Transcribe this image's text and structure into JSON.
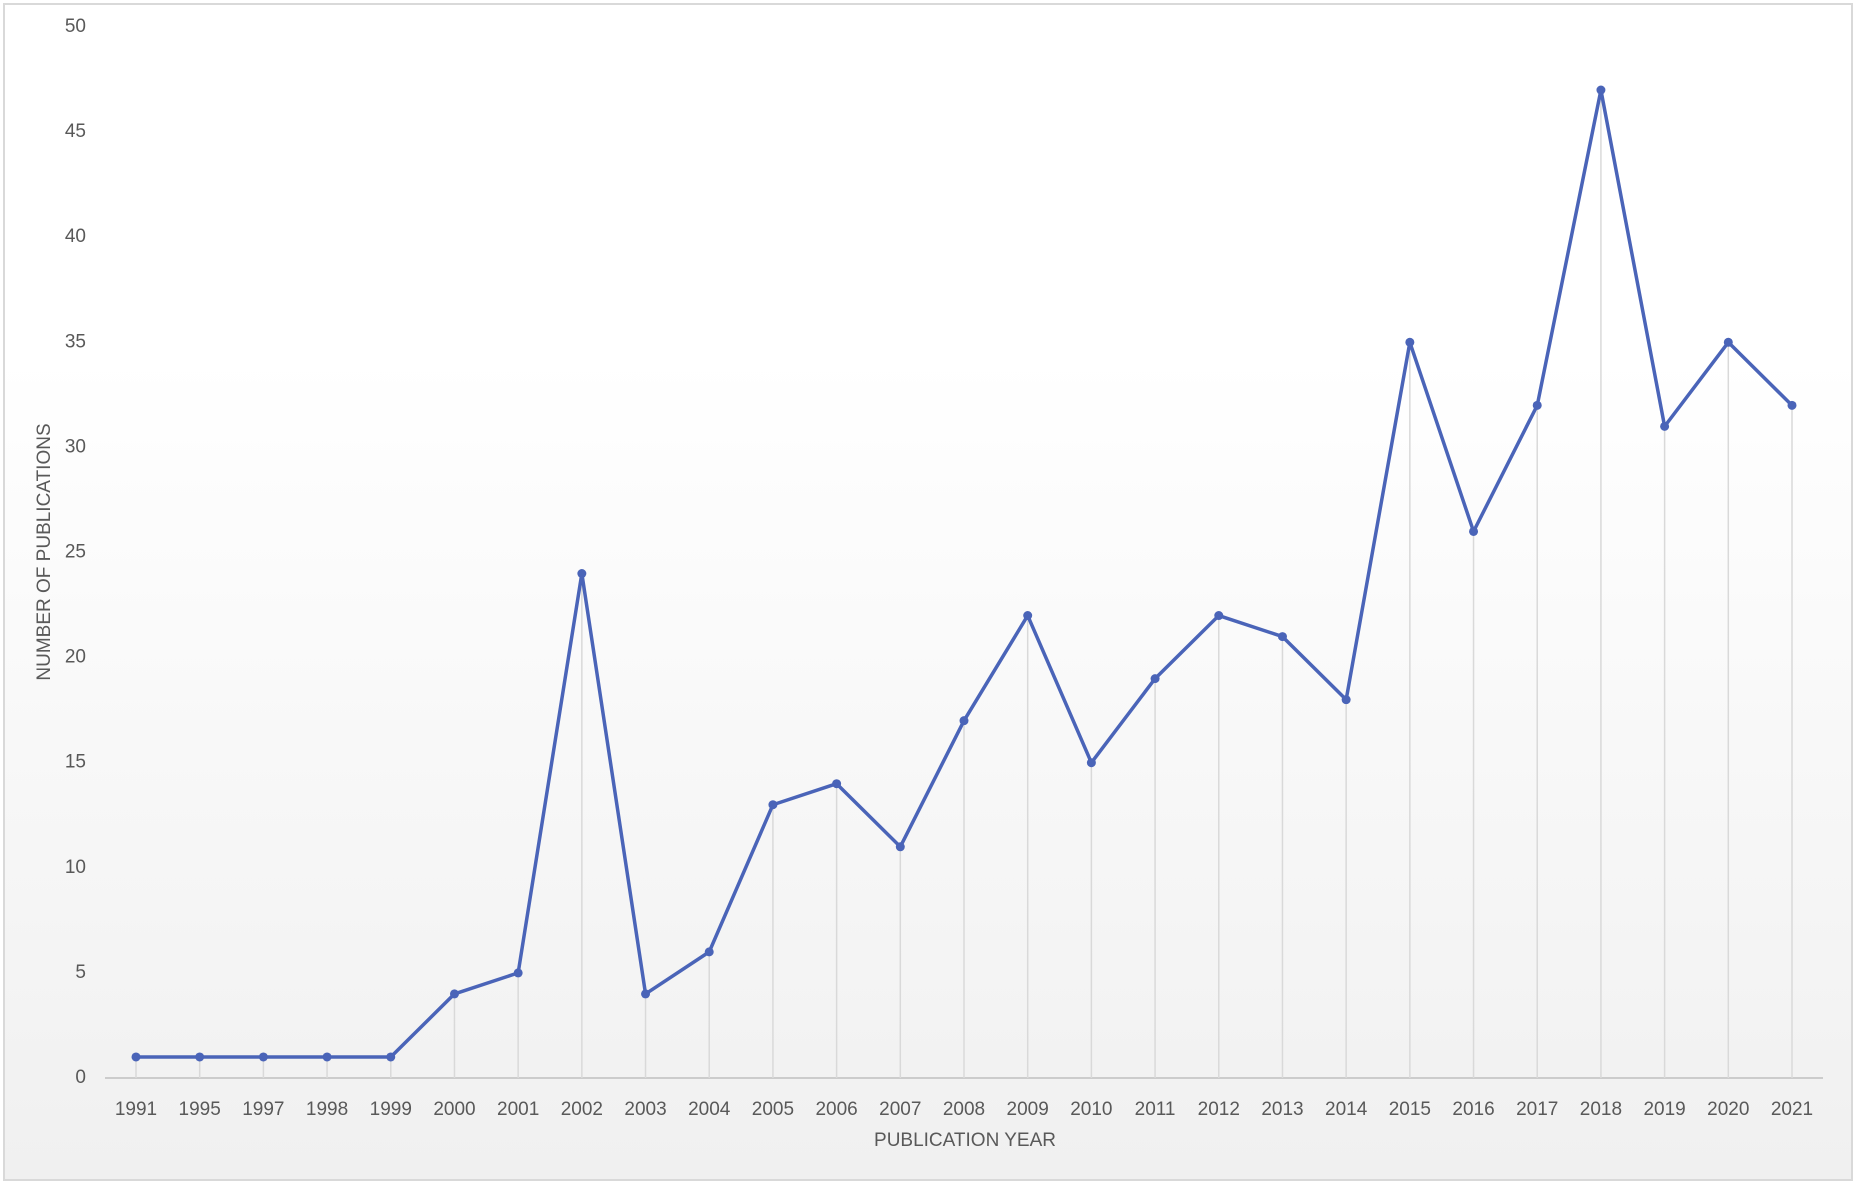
{
  "chart_data": {
    "type": "line",
    "x_label": "PUBLICATION YEAR",
    "y_label": "NUMBER OF PUBLICATIONS",
    "categories": [
      "1991",
      "1995",
      "1997",
      "1998",
      "1999",
      "2000",
      "2001",
      "2002",
      "2003",
      "2004",
      "2005",
      "2006",
      "2007",
      "2008",
      "2009",
      "2010",
      "2011",
      "2012",
      "2013",
      "2014",
      "2015",
      "2016",
      "2017",
      "2018",
      "2019",
      "2020",
      "2021"
    ],
    "series": [
      {
        "color": "#4a64b8",
        "values": [
          1,
          1,
          1,
          1,
          1,
          4,
          5,
          24,
          4,
          6,
          13,
          14,
          11,
          17,
          22,
          15,
          19,
          22,
          21,
          18,
          35,
          26,
          32,
          47,
          31,
          35,
          32
        ]
      }
    ],
    "ylim": [
      0,
      50
    ],
    "yticks": [
      0,
      5,
      10,
      15,
      20,
      25,
      30,
      35,
      40,
      45,
      50
    ],
    "drop_lines": true
  }
}
